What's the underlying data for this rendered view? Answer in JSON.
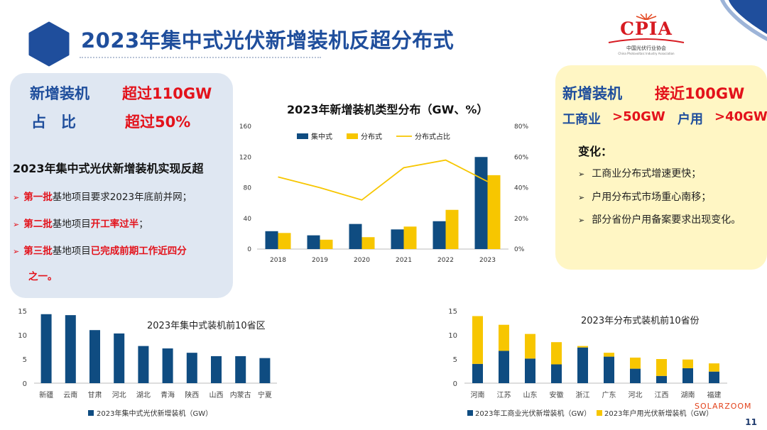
{
  "header": {
    "title": "2023年集中式光伏新增装机反超分布式",
    "logo_text": "CPIA",
    "logo_cn": "中国光伏行业协会",
    "logo_en": "China Photovoltaic Industry Association",
    "page_number": "11",
    "watermark": "SOLARZOOM"
  },
  "left_panel": {
    "line1_label": "新增装机",
    "line1_value": "超过110GW",
    "line2_label": "占　比",
    "line2_value": "超过50%",
    "heading": "2023年集中式光伏新增装机实现反超",
    "bullets": [
      {
        "red1": "第一批",
        "text1": "基地项目要求2023年底前并网；",
        "red2": "",
        "text2": ""
      },
      {
        "red1": "第二批",
        "text1": "基地项目",
        "red2": "开工率过半",
        "text2": "；"
      },
      {
        "red1": "第三批",
        "text1": "基地项目",
        "red2": "已完成前期工作近四分",
        "text2": ""
      }
    ],
    "bullet3_cont": "之一。"
  },
  "right_panel": {
    "line1_label": "新增装机",
    "line1_value": "接近100GW",
    "line2_a_label": "工商业",
    "line2_a_value": ">50GW",
    "line2_b_label": "户用",
    "line2_b_value": ">40GW",
    "change_label": "变化：",
    "bullets": [
      "工商业分布式增速更快；",
      "户用分布式市场重心南移；",
      "部分省份户用备案要求出现变化。"
    ]
  },
  "colors": {
    "navy": "#0f4c81",
    "gold": "#f7c600",
    "brand_blue": "#1f4e9c",
    "red": "#e3121b"
  },
  "chart_data": [
    {
      "type": "bar",
      "title": "2023年新增装机类型分布（GW、%）",
      "categories": [
        "2018",
        "2019",
        "2020",
        "2021",
        "2022",
        "2023"
      ],
      "series": [
        {
          "name": "集中式",
          "values": [
            23.3,
            17.9,
            32.7,
            25.6,
            36.3,
            120
          ]
        },
        {
          "name": "分布式",
          "values": [
            20.96,
            12.2,
            15.5,
            29.3,
            51.1,
            96.3
          ]
        },
        {
          "name": "分布式占比",
          "type": "line",
          "axis": "right",
          "values": [
            47,
            40,
            32,
            53,
            58,
            44
          ]
        }
      ],
      "ylim": [
        0,
        160
      ],
      "yticks": [
        "0",
        "40",
        "80",
        "120",
        "160"
      ],
      "y2lim": [
        0,
        80
      ],
      "y2ticks": [
        "0%",
        "20%",
        "40%",
        "60%",
        "80%"
      ],
      "legend": "top"
    },
    {
      "type": "bar",
      "title": "2023年集中式装机前10省区",
      "categories": [
        "新疆",
        "云南",
        "甘肃",
        "河北",
        "湖北",
        "青海",
        "陕西",
        "山西",
        "内蒙古",
        "宁夏"
      ],
      "series": [
        {
          "name": "2023年集中式光伏新增装机（GW）",
          "values": [
            14.3,
            14.1,
            11.0,
            10.3,
            7.7,
            7.2,
            6.3,
            5.6,
            5.6,
            5.2
          ]
        }
      ],
      "ylim": [
        0,
        15
      ],
      "yticks": [
        "0",
        "5",
        "10",
        "15"
      ],
      "legend": "bottom"
    },
    {
      "type": "bar",
      "stacked": true,
      "title": "2023年分布式装机前10省份",
      "categories": [
        "河南",
        "江苏",
        "山东",
        "安徽",
        "浙江",
        "广东",
        "河北",
        "江西",
        "湖南",
        "福建"
      ],
      "series": [
        {
          "name": "2023年工商业光伏新增装机（GW）",
          "values": [
            4.0,
            6.7,
            5.1,
            3.9,
            7.4,
            5.5,
            3.0,
            1.5,
            3.1,
            2.4
          ]
        },
        {
          "name": "2023年户用光伏新增装机（GW）",
          "values": [
            9.9,
            5.4,
            5.1,
            4.6,
            0.3,
            0.8,
            2.3,
            3.5,
            1.8,
            1.7
          ]
        }
      ],
      "ylim": [
        0,
        15
      ],
      "yticks": [
        "0",
        "5",
        "10",
        "15"
      ],
      "legend": "bottom"
    }
  ]
}
